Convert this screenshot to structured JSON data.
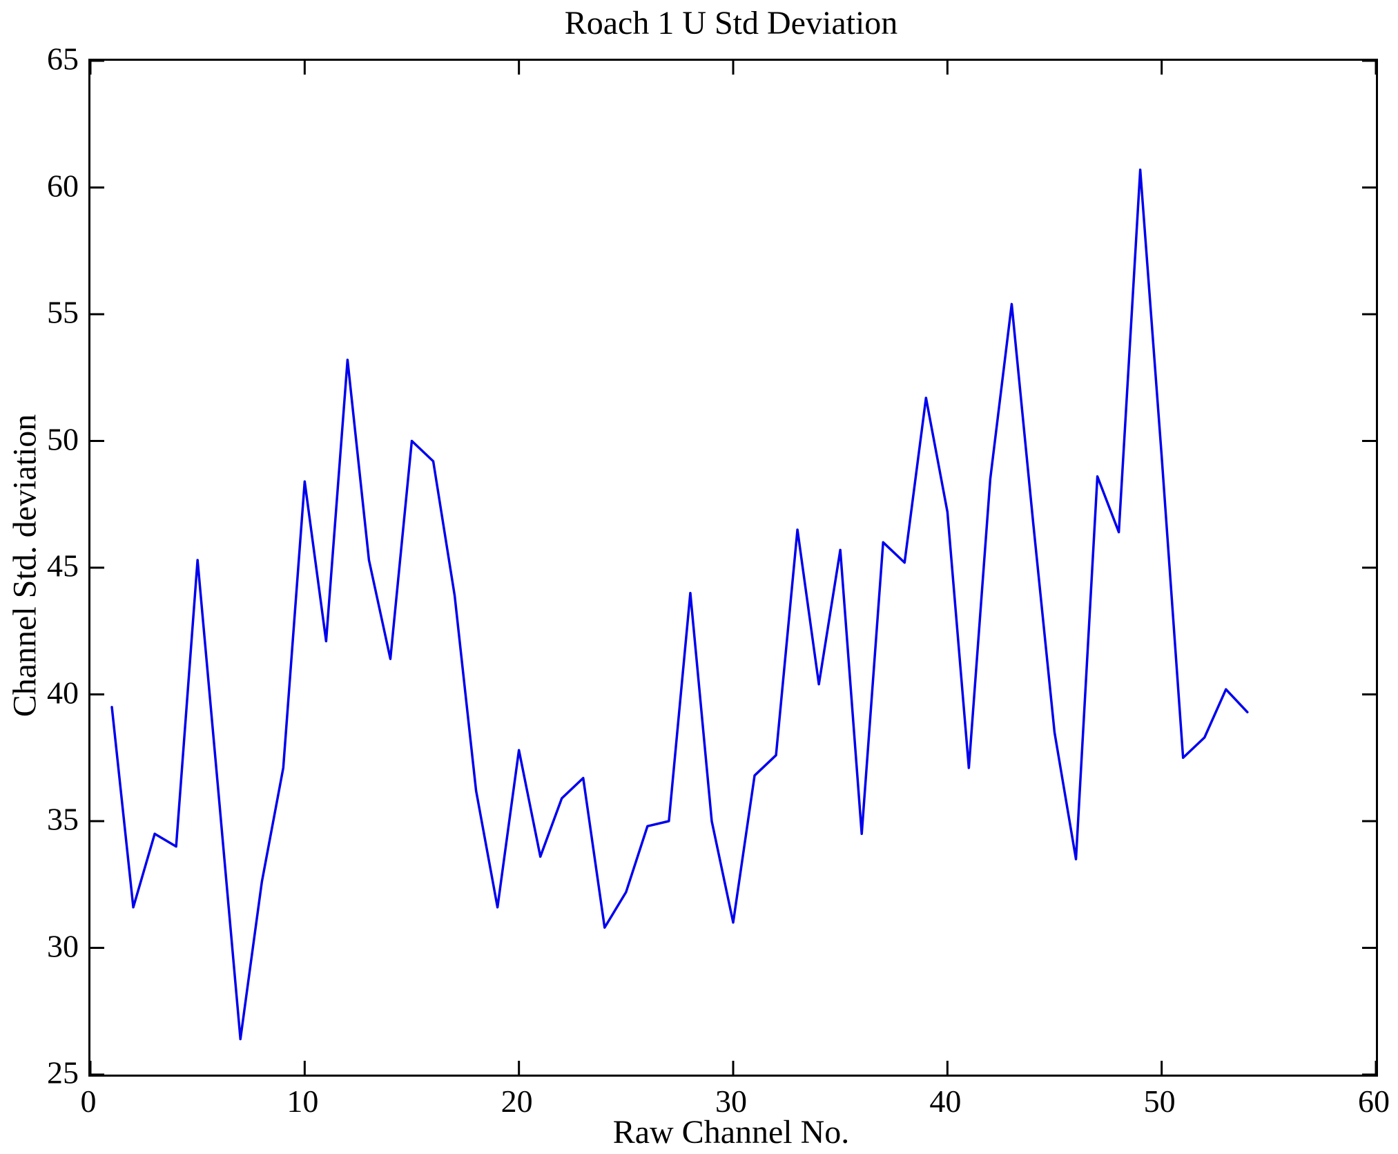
{
  "figure": {
    "title": "Roach 1 U Std Deviation",
    "xlabel": "Raw Channel No.",
    "ylabel": "Channel Std. deviation"
  },
  "chart_data": {
    "type": "line",
    "title": "Roach 1 U Std Deviation",
    "xlabel": "Raw Channel No.",
    "ylabel": "Channel Std. deviation",
    "series_name": "Channel Std. deviation",
    "x": [
      1,
      2,
      3,
      4,
      5,
      6,
      7,
      8,
      9,
      10,
      11,
      12,
      13,
      14,
      15,
      16,
      17,
      18,
      19,
      20,
      21,
      22,
      23,
      24,
      25,
      26,
      27,
      28,
      29,
      30,
      31,
      32,
      33,
      34,
      35,
      36,
      37,
      38,
      39,
      40,
      41,
      42,
      43,
      44,
      45,
      46,
      47,
      48,
      49,
      50,
      51,
      52,
      53,
      54
    ],
    "y": [
      39.5,
      31.6,
      34.5,
      34.0,
      45.3,
      35.9,
      26.4,
      32.6,
      37.1,
      48.4,
      42.1,
      53.2,
      45.3,
      41.4,
      50.0,
      49.2,
      43.9,
      36.2,
      31.6,
      37.8,
      33.6,
      35.9,
      36.7,
      30.8,
      32.2,
      34.8,
      35.0,
      44.0,
      35.0,
      31.0,
      36.8,
      37.6,
      46.5,
      40.4,
      45.7,
      34.5,
      46.0,
      45.2,
      51.7,
      47.2,
      37.1,
      48.5,
      55.4,
      46.8,
      38.5,
      33.5,
      48.6,
      46.4,
      60.7,
      49.4,
      37.5,
      38.3,
      40.2,
      39.3
    ],
    "xlim": [
      0,
      60
    ],
    "ylim": [
      25,
      65
    ],
    "xticks": [
      0,
      10,
      20,
      30,
      40,
      50,
      60
    ],
    "yticks": [
      25,
      30,
      35,
      40,
      45,
      50,
      55,
      60,
      65
    ],
    "line_color": "#0000EE",
    "line_width": 3.5,
    "axis_color": "#000000",
    "tick_length": 20,
    "grid": false,
    "legend": null,
    "legend_position": "none",
    "marker": "none"
  }
}
